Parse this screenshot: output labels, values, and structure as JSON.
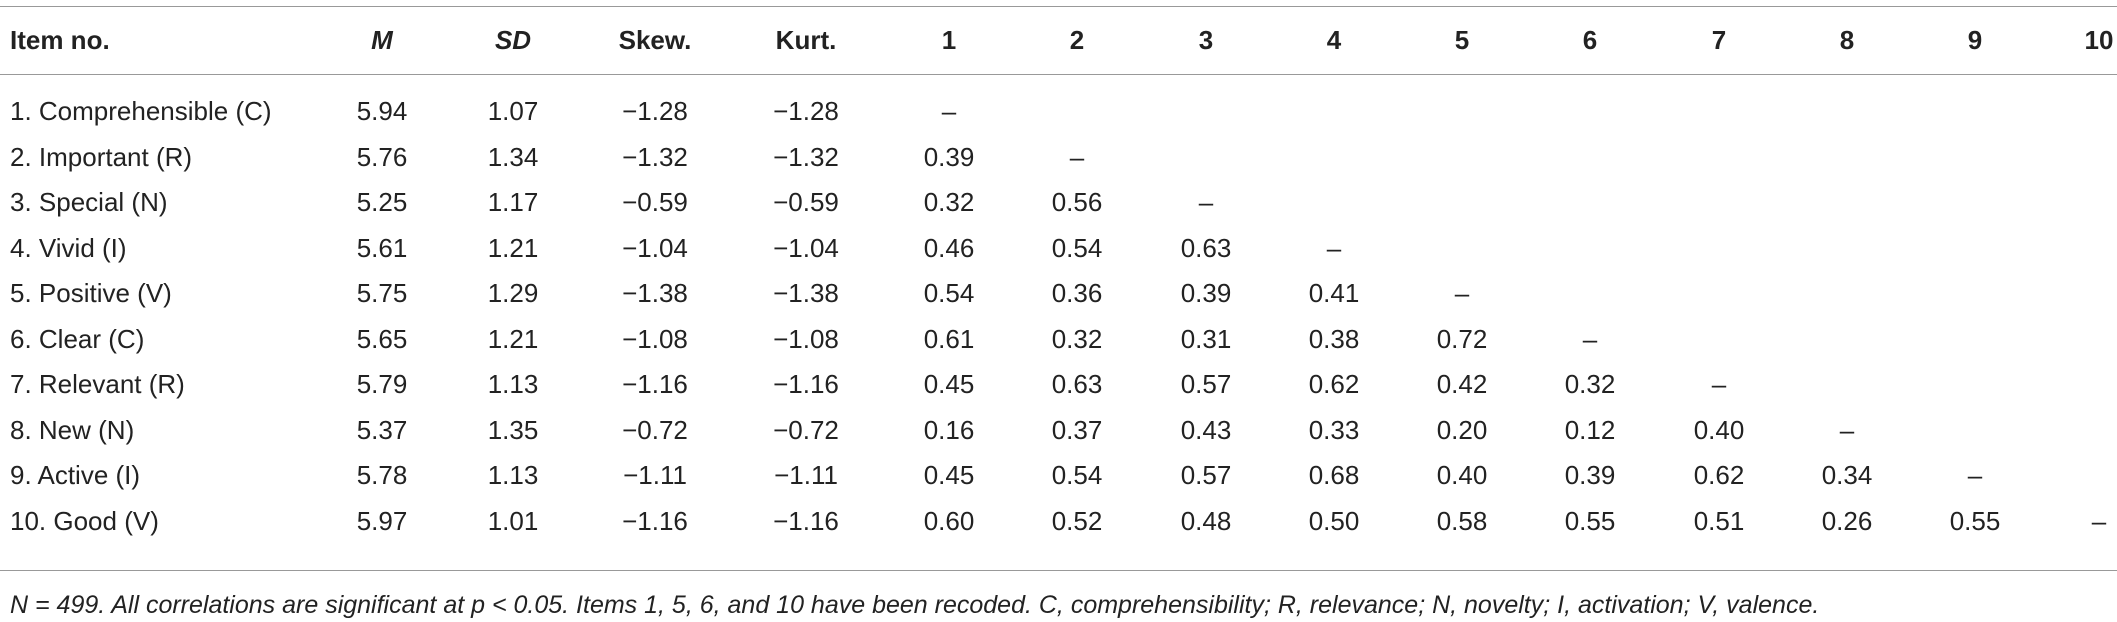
{
  "table": {
    "header": [
      "Item no.",
      "M",
      "SD",
      "Skew.",
      "Kurt.",
      "1",
      "2",
      "3",
      "4",
      "5",
      "6",
      "7",
      "8",
      "9",
      "10"
    ],
    "rows": [
      [
        "1. Comprehensible (C)",
        "5.94",
        "1.07",
        "−1.28",
        "−1.28",
        "–"
      ],
      [
        "2. Important (R)",
        "5.76",
        "1.34",
        "−1.32",
        "−1.32",
        "0.39",
        "–"
      ],
      [
        "3. Special (N)",
        "5.25",
        "1.17",
        "−0.59",
        "−0.59",
        "0.32",
        "0.56",
        "–"
      ],
      [
        "4. Vivid (I)",
        "5.61",
        "1.21",
        "−1.04",
        "−1.04",
        "0.46",
        "0.54",
        "0.63",
        "–"
      ],
      [
        "5. Positive (V)",
        "5.75",
        "1.29",
        "−1.38",
        "−1.38",
        "0.54",
        "0.36",
        "0.39",
        "0.41",
        "–"
      ],
      [
        "6. Clear (C)",
        "5.65",
        "1.21",
        "−1.08",
        "−1.08",
        "0.61",
        "0.32",
        "0.31",
        "0.38",
        "0.72",
        "–"
      ],
      [
        "7. Relevant (R)",
        "5.79",
        "1.13",
        "−1.16",
        "−1.16",
        "0.45",
        "0.63",
        "0.57",
        "0.62",
        "0.42",
        "0.32",
        "–"
      ],
      [
        "8. New (N)",
        "5.37",
        "1.35",
        "−0.72",
        "−0.72",
        "0.16",
        "0.37",
        "0.43",
        "0.33",
        "0.20",
        "0.12",
        "0.40",
        "–"
      ],
      [
        "9. Active (I)",
        "5.78",
        "1.13",
        "−1.11",
        "−1.11",
        "0.45",
        "0.54",
        "0.57",
        "0.68",
        "0.40",
        "0.39",
        "0.62",
        "0.34",
        "–"
      ],
      [
        "10. Good (V)",
        "5.97",
        "1.01",
        "−1.16",
        "−1.16",
        "0.60",
        "0.52",
        "0.48",
        "0.50",
        "0.58",
        "0.55",
        "0.51",
        "0.26",
        "0.55",
        "–"
      ]
    ],
    "footnote": "N = 499. All correlations are significant at p < 0.05. Items 1, 5, 6, and 10 have been recoded. C, comprehensibility; R, relevance; N, novelty; I, activation; V, valence."
  }
}
